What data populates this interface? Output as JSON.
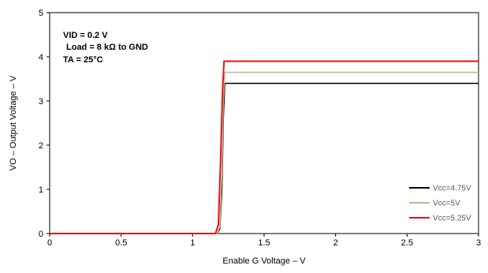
{
  "chart_data": {
    "type": "line",
    "xlabel": "Enable G Voltage – V",
    "ylabel": "VO – Output Voltage – V",
    "xlim": [
      0,
      3
    ],
    "ylim": [
      0,
      5
    ],
    "x_ticks": [
      "0",
      "0.5",
      "1",
      "1.5",
      "2",
      "2.5",
      "3"
    ],
    "y_ticks": [
      "0",
      "1",
      "2",
      "3",
      "4",
      "5"
    ],
    "grid": false,
    "legend_position": "bottom-right",
    "annotations": [
      "VID = 0.2 V",
      "Load = 8 kΩ to GND",
      "TA = 25°C"
    ],
    "series": [
      {
        "name": "Vcc=4.75V",
        "color": "#000000",
        "x": [
          0,
          1.17,
          1.19,
          1.205,
          1.215,
          1.225,
          3
        ],
        "y": [
          0,
          0,
          0.1,
          1.0,
          2.6,
          3.4,
          3.4
        ]
      },
      {
        "name": "Vcc=5V",
        "color": "#c4b48a",
        "x": [
          0,
          1.17,
          1.19,
          1.205,
          1.215,
          1.225,
          3
        ],
        "y": [
          0,
          0,
          0.15,
          1.4,
          3.0,
          3.65,
          3.65
        ]
      },
      {
        "name": "Vcc=5.25V",
        "color": "#e8141b",
        "x": [
          0,
          1.16,
          1.18,
          1.195,
          1.21,
          1.22,
          3
        ],
        "y": [
          0,
          0,
          0.2,
          1.6,
          3.3,
          3.9,
          3.9
        ]
      }
    ]
  }
}
